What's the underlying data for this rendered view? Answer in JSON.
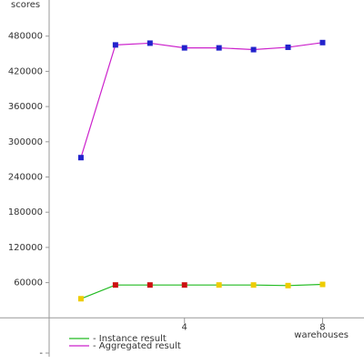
{
  "chart_data": {
    "type": "line",
    "y_label": "scores",
    "x_label": "warehouses",
    "xlim": [
      0,
      9.2
    ],
    "ylim": [
      -60000,
      540000
    ],
    "xticks": [
      4,
      8
    ],
    "yticks": [
      {
        "value": -60000,
        "label": "-"
      },
      60000,
      120000,
      180000,
      240000,
      300000,
      360000,
      420000,
      480000
    ],
    "series": [
      {
        "name": "- Instance result",
        "color": "#22bb22",
        "x": [
          1,
          2,
          3,
          4,
          5,
          6,
          7,
          8
        ],
        "values": [
          32600,
          56000,
          56000,
          56000,
          56000,
          56000,
          55000,
          57000
        ],
        "marker_colors": [
          "#eecc00",
          "#cc1111",
          "#cc1111",
          "#cc1111",
          "#eecc00",
          "#eecc00",
          "#eecc00",
          "#eecc00"
        ]
      },
      {
        "name": "- Aggregated result",
        "color": "#cc22cc",
        "x": [
          1,
          2,
          3,
          4,
          5,
          6,
          7,
          8
        ],
        "values": [
          273000,
          465000,
          468000,
          460000,
          460000,
          457000,
          461000,
          469000
        ],
        "marker_colors": [
          "#2222cc",
          "#2222cc",
          "#2222cc",
          "#2222cc",
          "#2222cc",
          "#2222cc",
          "#2222cc",
          "#2222cc"
        ]
      }
    ]
  }
}
